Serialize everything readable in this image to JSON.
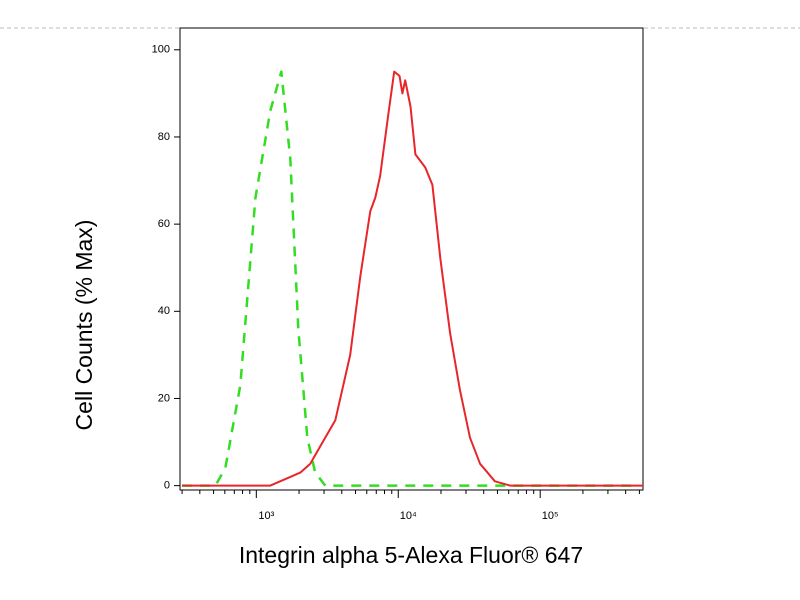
{
  "chart_data": {
    "type": "line",
    "x_label": "Integrin alpha 5-Alexa Fluor® 647",
    "y_label": "Cell Counts (% Max)",
    "x_scale": "log",
    "xlim": [
      290,
      530000
    ],
    "ylim": [
      -1,
      105
    ],
    "xticks": [
      {
        "value": 1000,
        "label": "10³"
      },
      {
        "value": 10000,
        "label": "10⁴"
      },
      {
        "value": 100000,
        "label": "10⁵"
      }
    ],
    "yticks": [
      0,
      20,
      40,
      60,
      80,
      100
    ],
    "series": [
      {
        "color": "#33dd22",
        "dash": true,
        "x": [
          300,
          515,
          605,
          771,
          985,
          1255,
          1500,
          1735,
          1977,
          2287,
          2600,
          3060,
          5000,
          30000,
          500000
        ],
        "values": [
          0,
          0,
          4,
          23,
          66,
          86,
          95,
          75,
          36,
          11,
          3,
          0,
          0,
          0,
          0
        ]
      },
      {
        "color": "#e8262a",
        "dash": false,
        "x": [
          300,
          1255,
          1735,
          2040,
          2400,
          2820,
          3600,
          4590,
          5400,
          6350,
          6880,
          7450,
          8500,
          9370,
          10200,
          10700,
          11200,
          12200,
          13200,
          15500,
          17400,
          19800,
          23200,
          27200,
          32000,
          37700,
          48000,
          61500,
          530000
        ],
        "values": [
          0,
          0,
          2,
          3,
          5,
          9,
          15,
          30,
          48,
          63,
          66,
          71,
          85,
          95,
          94,
          90,
          93,
          87,
          76,
          73,
          69,
          52,
          35,
          22,
          11,
          5,
          1,
          0,
          0
        ]
      }
    ]
  }
}
